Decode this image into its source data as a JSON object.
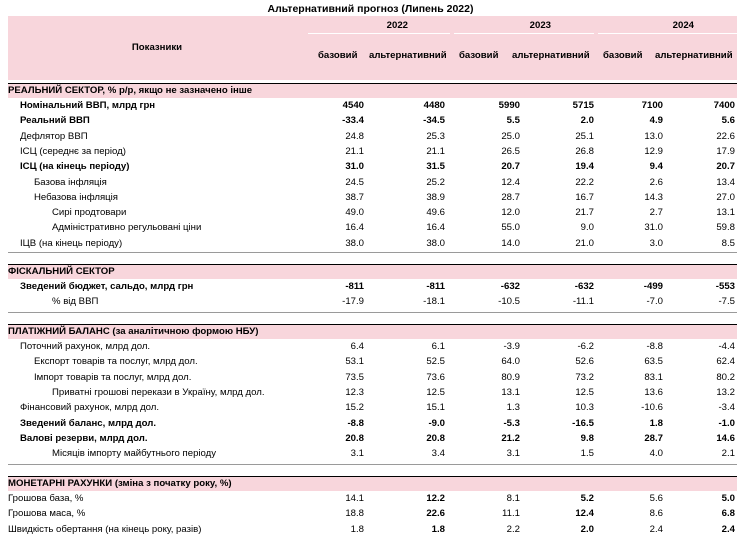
{
  "title": "Альтернативний прогноз (Липень 2022)",
  "header": {
    "indicators_label": "Показники",
    "years": [
      "2022",
      "2023",
      "2024"
    ],
    "scenario_base": "базовий",
    "scenario_alt": "альтернативний"
  },
  "sections": [
    {
      "title": "РЕАЛЬНИЙ СЕКТОР, % р/р, якщо не зазначено інше",
      "rows": [
        {
          "label": "Номінальний ВВП, млрд грн",
          "indent": 1,
          "bold": true,
          "values": [
            "4540",
            "4480",
            "5990",
            "5715",
            "7100",
            "7400"
          ],
          "bold_cols": []
        },
        {
          "label": "Реальний ВВП",
          "indent": 1,
          "bold": true,
          "values": [
            "-33.4",
            "-34.5",
            "5.5",
            "2.0",
            "4.9",
            "5.6"
          ],
          "bold_cols": []
        },
        {
          "label": "Дефлятор ВВП",
          "indent": 1,
          "bold": false,
          "values": [
            "24.8",
            "25.3",
            "25.0",
            "25.1",
            "13.0",
            "22.6"
          ],
          "bold_cols": []
        },
        {
          "label": "ІСЦ (середнє за період)",
          "indent": 1,
          "bold": false,
          "values": [
            "21.1",
            "21.1",
            "26.5",
            "26.8",
            "12.9",
            "17.9"
          ],
          "bold_cols": []
        },
        {
          "label": "ІСЦ (на кінець періоду)",
          "indent": 1,
          "bold": true,
          "values": [
            "31.0",
            "31.5",
            "20.7",
            "19.4",
            "9.4",
            "20.7"
          ],
          "bold_cols": []
        },
        {
          "label": "Базова інфляція",
          "indent": 2,
          "bold": false,
          "values": [
            "24.5",
            "25.2",
            "12.4",
            "22.2",
            "2.6",
            "13.4"
          ],
          "bold_cols": []
        },
        {
          "label": "Небазова інфляція",
          "indent": 2,
          "bold": false,
          "values": [
            "38.7",
            "38.9",
            "28.7",
            "16.7",
            "14.3",
            "27.0"
          ],
          "bold_cols": []
        },
        {
          "label": "Сирі продтовари",
          "indent": 3,
          "bold": false,
          "values": [
            "49.0",
            "49.6",
            "12.0",
            "21.7",
            "2.7",
            "13.1"
          ],
          "bold_cols": []
        },
        {
          "label": "Адміністративно регульовані ціни",
          "indent": 3,
          "bold": false,
          "values": [
            "16.4",
            "16.4",
            "55.0",
            "9.0",
            "31.0",
            "59.8"
          ],
          "bold_cols": []
        },
        {
          "label": "ІЦВ (на кінець періоду)",
          "indent": 1,
          "bold": false,
          "values": [
            "38.0",
            "38.0",
            "14.0",
            "21.0",
            "3.0",
            "8.5"
          ],
          "bold_cols": []
        }
      ]
    },
    {
      "title": "ФІСКАЛЬНИЙ СЕКТОР",
      "rows": [
        {
          "label": "Зведений бюджет, сальдо, млрд грн",
          "indent": 1,
          "bold": true,
          "values": [
            "-811",
            "-811",
            "-632",
            "-632",
            "-499",
            "-553"
          ],
          "bold_cols": []
        },
        {
          "label": "% від ВВП",
          "indent": 3,
          "bold": false,
          "values": [
            "-17.9",
            "-18.1",
            "-10.5",
            "-11.1",
            "-7.0",
            "-7.5"
          ],
          "bold_cols": []
        }
      ]
    },
    {
      "title": "ПЛАТІЖНИЙ БАЛАНС (за аналітичною формою НБУ)",
      "rows": [
        {
          "label": "Поточний рахунок, млрд дол.",
          "indent": 1,
          "bold": false,
          "values": [
            "6.4",
            "6.1",
            "-3.9",
            "-6.2",
            "-8.8",
            "-4.4"
          ],
          "bold_cols": []
        },
        {
          "label": "Експорт товарів та послуг, млрд дол.",
          "indent": 2,
          "bold": false,
          "values": [
            "53.1",
            "52.5",
            "64.0",
            "52.6",
            "63.5",
            "62.4"
          ],
          "bold_cols": []
        },
        {
          "label": "Імпорт товарів та послуг, млрд дол.",
          "indent": 2,
          "bold": false,
          "values": [
            "73.5",
            "73.6",
            "80.9",
            "73.2",
            "83.1",
            "80.2"
          ],
          "bold_cols": []
        },
        {
          "label": "Приватні грошові перекази в Україну, млрд дол.",
          "indent": 3,
          "bold": false,
          "values": [
            "12.3",
            "12.5",
            "13.1",
            "12.5",
            "13.6",
            "13.2"
          ],
          "bold_cols": []
        },
        {
          "label": "Фінансовий рахунок, млрд дол.",
          "indent": 1,
          "bold": false,
          "values": [
            "15.2",
            "15.1",
            "1.3",
            "10.3",
            "-10.6",
            "-3.4"
          ],
          "bold_cols": []
        },
        {
          "label": "Зведений баланс, млрд дол.",
          "indent": 1,
          "bold": true,
          "values": [
            "-8.8",
            "-9.0",
            "-5.3",
            "-16.5",
            "1.8",
            "-1.0"
          ],
          "bold_cols": []
        },
        {
          "label": "Валові резерви, млрд дол.",
          "indent": 1,
          "bold": true,
          "values": [
            "20.8",
            "20.8",
            "21.2",
            "9.8",
            "28.7",
            "14.6"
          ],
          "bold_cols": []
        },
        {
          "label": "Місяців імпорту майбутнього періоду",
          "indent": 3,
          "bold": false,
          "values": [
            "3.1",
            "3.4",
            "3.1",
            "1.5",
            "4.0",
            "2.1"
          ],
          "bold_cols": []
        }
      ]
    },
    {
      "title": "МОНЕТАРНІ РАХУНКИ (зміна з початку року, %)",
      "rows": [
        {
          "label": "Грошова база, %",
          "indent": 0,
          "bold": false,
          "values": [
            "14.1",
            "12.2",
            "8.1",
            "5.2",
            "5.6",
            "5.0"
          ],
          "bold_cols": [
            1,
            3,
            5
          ]
        },
        {
          "label": "Грошова маса, %",
          "indent": 0,
          "bold": false,
          "values": [
            "18.8",
            "22.6",
            "11.1",
            "12.4",
            "8.6",
            "6.8"
          ],
          "bold_cols": [
            1,
            3,
            5
          ]
        },
        {
          "label": "Швидкість обертання (на кінець року, разів)",
          "indent": 0,
          "bold": false,
          "values": [
            "1.8",
            "1.8",
            "2.2",
            "2.0",
            "2.4",
            "2.4"
          ],
          "bold_cols": [
            1,
            3,
            5
          ]
        }
      ]
    }
  ]
}
